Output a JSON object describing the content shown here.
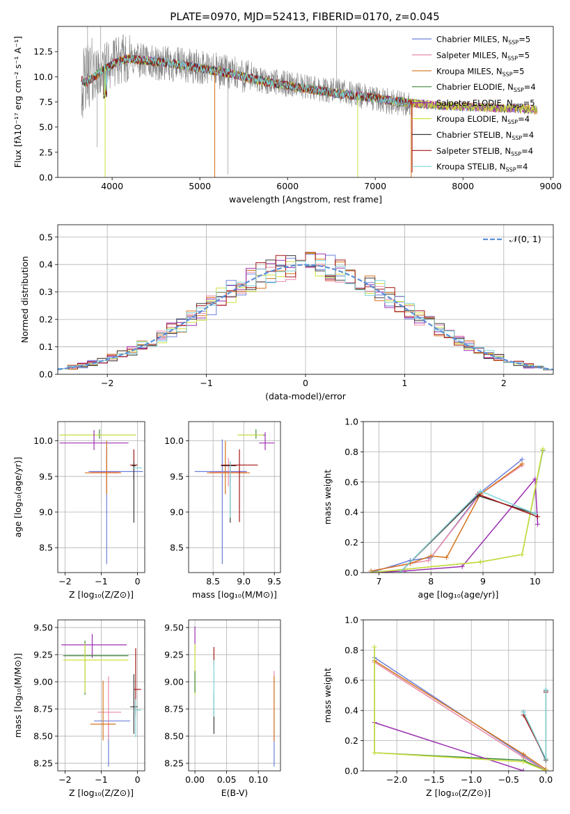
{
  "figure_title": "PLATE=0970, MJD=52413, FIBERID=0170, z=0.045",
  "colors": {
    "chabrier_miles": "#6a7fd9",
    "salpeter_miles": "#e98aa8",
    "kroupa_miles": "#d4721b",
    "chabrier_elodie": "#3f8a3a",
    "salpeter_elodie": "#9b2fb0",
    "kroupa_elodie": "#cde03a",
    "chabrier_stelib": "#3a3a3a",
    "salpeter_stelib": "#a31414",
    "kroupa_stelib": "#7fd4d8",
    "observed": "#808080",
    "gaussian": "#5b8fd6"
  },
  "chart_data": [
    {
      "type": "line",
      "title": "PLATE=0970, MJD=52413, FIBERID=0170, z=0.045",
      "xlabel": "wavelength [Angstrom, rest frame]",
      "ylabel": "Flux [fλ10⁻¹⁷ erg cm⁻² s⁻¹ A⁻¹]",
      "xlim": [
        3380,
        9030
      ],
      "ylim": [
        0,
        15.0
      ],
      "xticks": [
        4000,
        5000,
        6000,
        7000,
        8000,
        9000
      ],
      "yticks": [
        0.0,
        2.5,
        5.0,
        7.5,
        10.0,
        12.5
      ],
      "legend_position": "top-right",
      "legend": [
        "Chabrier MILES, N_SSP=5",
        "Salpeter MILES, N_SSP=5",
        "Kroupa MILES, N_SSP=5",
        "Chabrier ELODIE, N_SSP=4",
        "Salpeter ELODIE, N_SSP=5",
        "Kroupa ELODIE, N_SSP=4",
        "Chabrier STELIB, N_SSP=4",
        "Salpeter STELIB, N_SSP=4",
        "Kroupa STELIB, N_SSP=4"
      ],
      "observed_continuum": {
        "x": [
          3650,
          3750,
          3850,
          3950,
          4050,
          4150,
          4300,
          4500,
          4700,
          4900,
          5100,
          5300,
          5500,
          5700,
          6000,
          6300,
          6600,
          6900,
          7200,
          7400
        ],
        "y": [
          9.0,
          10.5,
          10.2,
          11.2,
          11.5,
          11.8,
          11.7,
          11.3,
          11.2,
          11.0,
          10.8,
          10.4,
          10.1,
          9.6,
          9.3,
          8.9,
          8.5,
          8.0,
          7.5,
          7.2
        ]
      },
      "model_continuum": {
        "x": [
          3650,
          3700,
          3800,
          3900,
          4000,
          4100,
          4200,
          4300,
          4500,
          4700,
          4900,
          5100,
          5300,
          5500,
          5700,
          6000,
          6300,
          6600,
          6900,
          7200,
          7500,
          7800,
          8100,
          8400,
          8700,
          8850
        ],
        "y": [
          9.7,
          9.4,
          10.0,
          10.7,
          11.2,
          11.6,
          11.8,
          11.7,
          11.5,
          11.3,
          11.0,
          10.7,
          10.4,
          10.0,
          9.6,
          9.1,
          8.7,
          8.3,
          8.0,
          7.6,
          7.3,
          7.1,
          7.0,
          6.9,
          6.8,
          6.7
        ]
      },
      "model_drops": [
        {
          "x": 3920,
          "series": [
            5
          ],
          "to": 0
        },
        {
          "x": 5170,
          "series": [
            2
          ],
          "to": 0
        },
        {
          "x": 6800,
          "series": [
            5
          ],
          "to": 0
        },
        {
          "x": 7410,
          "series": [
            2
          ],
          "to": 0
        },
        {
          "x": 7420,
          "series": [
            7
          ],
          "to": 0.5
        }
      ]
    },
    {
      "type": "line",
      "xlabel": "(data-model)/error",
      "ylabel": "Normed distribution",
      "xlim": [
        -2.5,
        2.5
      ],
      "ylim": [
        0,
        0.545
      ],
      "xticks": [
        -2,
        -1,
        0,
        1,
        2
      ],
      "yticks": [
        0.0,
        0.1,
        0.2,
        0.3,
        0.4,
        0.5
      ],
      "grid": true,
      "legend_position": "top-right",
      "legend": [
        "𝒩(0, 1)"
      ],
      "histogram_bin_width": 0.1,
      "histogram_range": [
        -2.5,
        2.5
      ]
    },
    {
      "type": "scatter",
      "xlabel": "Z [log₁₀(Z/Z⊙)]",
      "ylabel": "age  [log₁₀(age/yr)]",
      "xlim": [
        -2.2,
        0.2
      ],
      "ylim": [
        8.15,
        10.27
      ],
      "xticks": [
        -2,
        -1,
        0
      ],
      "yticks": [
        8.5,
        9.0,
        9.5,
        10.0
      ],
      "grid": true
    },
    {
      "type": "scatter",
      "xlabel": "mass [log₁₀(M/M⊙)]",
      "xlim": [
        8.1,
        9.6
      ],
      "ylim": [
        8.15,
        10.27
      ],
      "xticks": [
        8.5,
        9.0,
        9.5
      ],
      "yticks": [
        8.5,
        9.0,
        9.5,
        10.0
      ],
      "grid": true
    },
    {
      "type": "line",
      "xlabel": "age  [log₁₀(age/yr)]",
      "ylabel": "mass weight",
      "xlim": [
        6.7,
        10.35
      ],
      "ylim": [
        0,
        1.0
      ],
      "xticks": [
        7,
        8,
        9,
        10
      ],
      "yticks": [
        0.0,
        0.2,
        0.4,
        0.6,
        0.8,
        1.0
      ],
      "grid": true,
      "series": [
        {
          "x": [
            6.85,
            7.6,
            8.0,
            8.95,
            9.75
          ],
          "y": [
            0.0,
            0.08,
            0.1,
            0.53,
            0.75
          ]
        },
        {
          "x": [
            6.85,
            7.6,
            7.95,
            8.95,
            9.75
          ],
          "y": [
            0.01,
            0.06,
            0.08,
            0.52,
            0.71
          ]
        },
        {
          "x": [
            6.85,
            7.6,
            8.0,
            8.3,
            8.95,
            9.75
          ],
          "y": [
            0.01,
            0.06,
            0.11,
            0.1,
            0.52,
            0.72
          ]
        },
        {
          "x": [
            6.85,
            8.95,
            9.75,
            10.15
          ],
          "y": [
            0.0,
            0.07,
            0.12,
            0.81
          ]
        },
        {
          "x": [
            6.85,
            7.5,
            8.6,
            10.0,
            10.05
          ],
          "y": [
            0.0,
            0.01,
            0.04,
            0.62,
            0.32
          ]
        },
        {
          "x": [
            6.85,
            8.95,
            9.75,
            10.15
          ],
          "y": [
            0.0,
            0.07,
            0.12,
            0.82
          ]
        },
        {
          "x": [
            7.4,
            8.9,
            10.0
          ],
          "y": [
            0.0,
            0.51,
            0.39
          ]
        },
        {
          "x": [
            7.4,
            8.9,
            10.05
          ],
          "y": [
            0.0,
            0.52,
            0.37
          ]
        },
        {
          "x": [
            7.4,
            8.95,
            10.0
          ],
          "y": [
            0.0,
            0.54,
            0.39
          ]
        }
      ]
    },
    {
      "type": "scatter",
      "xlabel": "Z [log₁₀(Z/Z⊙)]",
      "ylabel": "mass [log₁₀(M/M⊙)]",
      "xlim": [
        -2.2,
        0.2
      ],
      "ylim": [
        8.18,
        9.57
      ],
      "xticks": [
        -2,
        -1,
        0
      ],
      "yticks": [
        8.25,
        8.5,
        8.75,
        9.0,
        9.25,
        9.5
      ],
      "grid": true
    },
    {
      "type": "scatter",
      "xlabel": "E(B-V)",
      "xlim": [
        -0.01,
        0.135
      ],
      "ylim": [
        8.18,
        9.57
      ],
      "xticks": [
        0.0,
        0.05,
        0.1
      ],
      "xtick_labels": [
        "0.00",
        "0.05",
        "0.10"
      ],
      "yticks": [
        8.25,
        8.5,
        8.75,
        9.0,
        9.25,
        9.5
      ],
      "grid": true
    },
    {
      "type": "line",
      "xlabel": "Z [log₁₀(Z/Z⊙)]",
      "ylabel": "mass weight",
      "xlim": [
        -2.45,
        0.1
      ],
      "ylim": [
        0,
        1.0
      ],
      "xticks": [
        -2.0,
        -1.5,
        -1.0,
        -0.5,
        0.0
      ],
      "yticks": [
        0.0,
        0.2,
        0.4,
        0.6,
        0.8,
        1.0
      ],
      "grid": true,
      "series": [
        {
          "x": [
            -2.3,
            -0.3,
            0.0
          ],
          "y": [
            0.75,
            0.1,
            0.0
          ]
        },
        {
          "x": [
            -2.3,
            -0.3,
            0.0
          ],
          "y": [
            0.72,
            0.09,
            0.0
          ]
        },
        {
          "x": [
            -2.3,
            -0.3,
            0.0
          ],
          "y": [
            0.73,
            0.11,
            0.01
          ]
        },
        {
          "x": [
            -2.3,
            -2.3,
            -0.3,
            0.0
          ],
          "y": [
            0.82,
            0.12,
            0.07,
            0.0
          ]
        },
        {
          "x": [
            -2.3,
            -0.3,
            -0.3
          ],
          "y": [
            0.32,
            0.0,
            0.0
          ]
        },
        {
          "x": [
            -2.3,
            -2.3,
            -0.3,
            0.0
          ],
          "y": [
            0.82,
            0.12,
            0.06,
            0.0
          ]
        },
        {
          "x": [
            -0.3,
            0.0,
            0.0
          ],
          "y": [
            0.39,
            0.07,
            0.53
          ]
        },
        {
          "x": [
            -0.3,
            0.0,
            0.0
          ],
          "y": [
            0.37,
            0.08,
            0.52
          ]
        },
        {
          "x": [
            -0.3,
            0.0,
            0.0
          ],
          "y": [
            0.39,
            0.08,
            0.54
          ]
        }
      ]
    }
  ]
}
